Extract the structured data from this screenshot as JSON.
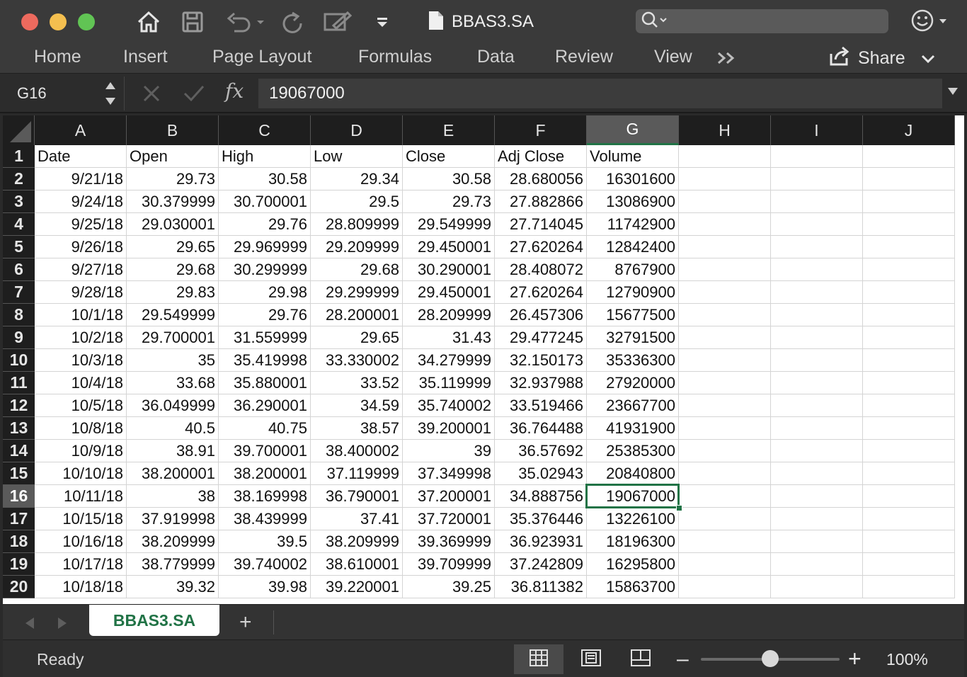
{
  "window": {
    "title": "BBAS3.SA"
  },
  "search": {
    "placeholder": ""
  },
  "ribbon": {
    "tabs": [
      "Home",
      "Insert",
      "Page Layout",
      "Formulas",
      "Data",
      "Review",
      "View"
    ],
    "share_label": "Share"
  },
  "formula_bar": {
    "cell_ref": "G16",
    "formula": "19067000",
    "fx_label": "fx"
  },
  "grid": {
    "selected_cell": "G16",
    "selected_column": "G",
    "selected_row": "16",
    "columns": [
      "A",
      "B",
      "C",
      "D",
      "E",
      "F",
      "G",
      "H",
      "I",
      "J"
    ],
    "row_numbers": [
      "1",
      "2",
      "3",
      "4",
      "5",
      "6",
      "7",
      "8",
      "9",
      "10",
      "11",
      "12",
      "13",
      "14",
      "15",
      "16",
      "17",
      "18",
      "19",
      "20"
    ],
    "rows": [
      [
        "Date",
        "Open",
        "High",
        "Low",
        "Close",
        "Adj Close",
        "Volume"
      ],
      [
        "9/21/18",
        "29.73",
        "30.58",
        "29.34",
        "30.58",
        "28.680056",
        "16301600"
      ],
      [
        "9/24/18",
        "30.379999",
        "30.700001",
        "29.5",
        "29.73",
        "27.882866",
        "13086900"
      ],
      [
        "9/25/18",
        "29.030001",
        "29.76",
        "28.809999",
        "29.549999",
        "27.714045",
        "11742900"
      ],
      [
        "9/26/18",
        "29.65",
        "29.969999",
        "29.209999",
        "29.450001",
        "27.620264",
        "12842400"
      ],
      [
        "9/27/18",
        "29.68",
        "30.299999",
        "29.68",
        "30.290001",
        "28.408072",
        "8767900"
      ],
      [
        "9/28/18",
        "29.83",
        "29.98",
        "29.299999",
        "29.450001",
        "27.620264",
        "12790900"
      ],
      [
        "10/1/18",
        "29.549999",
        "29.76",
        "28.200001",
        "28.209999",
        "26.457306",
        "15677500"
      ],
      [
        "10/2/18",
        "29.700001",
        "31.559999",
        "29.65",
        "31.43",
        "29.477245",
        "32791500"
      ],
      [
        "10/3/18",
        "35",
        "35.419998",
        "33.330002",
        "34.279999",
        "32.150173",
        "35336300"
      ],
      [
        "10/4/18",
        "33.68",
        "35.880001",
        "33.52",
        "35.119999",
        "32.937988",
        "27920000"
      ],
      [
        "10/5/18",
        "36.049999",
        "36.290001",
        "34.59",
        "35.740002",
        "33.519466",
        "23667700"
      ],
      [
        "10/8/18",
        "40.5",
        "40.75",
        "38.57",
        "39.200001",
        "36.764488",
        "41931900"
      ],
      [
        "10/9/18",
        "38.91",
        "39.700001",
        "38.400002",
        "39",
        "36.57692",
        "25385300"
      ],
      [
        "10/10/18",
        "38.200001",
        "38.200001",
        "37.119999",
        "37.349998",
        "35.02943",
        "20840800"
      ],
      [
        "10/11/18",
        "38",
        "38.169998",
        "36.790001",
        "37.200001",
        "34.888756",
        "19067000"
      ],
      [
        "10/15/18",
        "37.919998",
        "38.439999",
        "37.41",
        "37.720001",
        "35.376446",
        "13226100"
      ],
      [
        "10/16/18",
        "38.209999",
        "39.5",
        "38.209999",
        "39.369999",
        "36.923931",
        "18196300"
      ],
      [
        "10/17/18",
        "38.779999",
        "39.740002",
        "38.610001",
        "39.709999",
        "37.242809",
        "16295800"
      ],
      [
        "10/18/18",
        "39.32",
        "39.98",
        "39.220001",
        "39.25",
        "36.811382",
        "15863700"
      ]
    ]
  },
  "sheets": {
    "active": "BBAS3.SA",
    "add_label": "+"
  },
  "status": {
    "text": "Ready",
    "zoom": "100%",
    "zoom_percent": 100
  },
  "colors": {
    "accent": "#217346"
  }
}
